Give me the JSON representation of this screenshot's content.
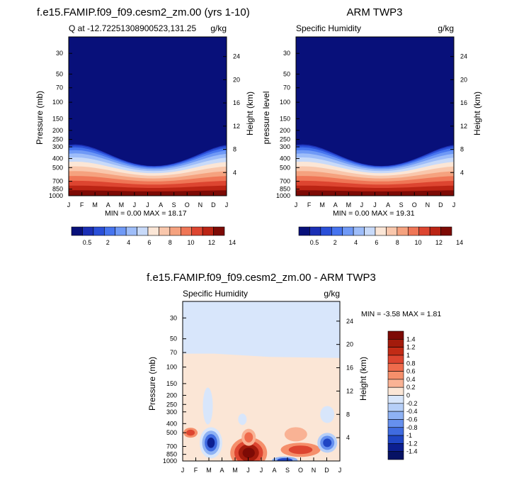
{
  "chart_data": [
    {
      "type": "heatmap",
      "title": "f.e15.FAMIP.f09_f09.cesm2_zm.00 (yrs 1-10)",
      "left_label": "Q at -12.72251308900523,131.25",
      "units": "g/kg",
      "ylabel": "Pressure (mb)",
      "ylabel_right": "Height (km)",
      "months": [
        "J",
        "F",
        "M",
        "A",
        "M",
        "J",
        "J",
        "A",
        "S",
        "O",
        "N",
        "D",
        "J"
      ],
      "pressure_ticks": [
        "30",
        "50",
        "70",
        "100",
        "150",
        "200",
        "250",
        "300",
        "400",
        "500",
        "700",
        "850",
        "1000"
      ],
      "height_ticks": [
        "24",
        "20",
        "16",
        "12",
        "8",
        "4"
      ],
      "stats": "MIN =   0.00 MAX =  18.17",
      "min": 0.0,
      "max": 18.17,
      "profile": "moist"
    },
    {
      "type": "heatmap",
      "title": "ARM TWP3",
      "left_label": "Specific Humidity",
      "units": "g/kg",
      "ylabel": "pressure level",
      "ylabel_right": "Height (km)",
      "months": [
        "J",
        "F",
        "M",
        "A",
        "M",
        "J",
        "J",
        "A",
        "S",
        "O",
        "N",
        "D",
        "J"
      ],
      "pressure_ticks": [
        "30",
        "50",
        "70",
        "100",
        "150",
        "200",
        "250",
        "300",
        "400",
        "500",
        "700",
        "850",
        "1000"
      ],
      "height_ticks": [
        "24",
        "20",
        "16",
        "12",
        "8",
        "4"
      ],
      "stats": "MIN =   0.00 MAX =  19.31",
      "min": 0.0,
      "max": 19.31,
      "profile": "moist"
    },
    {
      "type": "heatmap",
      "title": "f.e15.FAMIP.f09_f09.cesm2_zm.00 - ARM TWP3",
      "left_label": "Specific Humidity",
      "units": "g/kg",
      "ylabel": "Pressure (mb)",
      "ylabel_right": "Height (km)",
      "months": [
        "J",
        "F",
        "M",
        "A",
        "M",
        "J",
        "J",
        "A",
        "S",
        "O",
        "N",
        "D",
        "J"
      ],
      "pressure_ticks": [
        "30",
        "50",
        "70",
        "100",
        "150",
        "200",
        "250",
        "300",
        "400",
        "500",
        "700",
        "850",
        "1000"
      ],
      "height_ticks": [
        "24",
        "20",
        "16",
        "12",
        "8",
        "4"
      ],
      "stats": "MIN = -3.58 MAX =   1.81",
      "min": -3.58,
      "max": 1.81,
      "profile": "diff"
    }
  ],
  "colorbars": {
    "moist": {
      "labels": [
        "0.5",
        "2",
        "4",
        "6",
        "8",
        "10",
        "12",
        "14"
      ],
      "colors": [
        "#08107a",
        "#1b2fb5",
        "#2a4fd8",
        "#4674ef",
        "#6f99f6",
        "#9ebdf9",
        "#c8daf9",
        "#fbe6d6",
        "#f9c7ac",
        "#f5a27f",
        "#ef7656",
        "#dd4530",
        "#bb2414",
        "#7d0a05"
      ]
    },
    "diff": {
      "labels": [
        "1.4",
        "1.2",
        "1",
        "0.8",
        "0.6",
        "0.4",
        "0.2",
        "0",
        "-0.2",
        "-0.4",
        "-0.6",
        "-0.8",
        "-1",
        "-1.2",
        "-1.4"
      ],
      "colors": [
        "#7d0a05",
        "#a31b0c",
        "#c22b16",
        "#dd4530",
        "#ef6b4c",
        "#f58f6b",
        "#f9b294",
        "#fbe6d6",
        "#d8e6fb",
        "#b6cff8",
        "#8eb2f4",
        "#6690ee",
        "#3f6be0",
        "#1f45c4",
        "#0c1f90",
        "#061264"
      ]
    }
  }
}
